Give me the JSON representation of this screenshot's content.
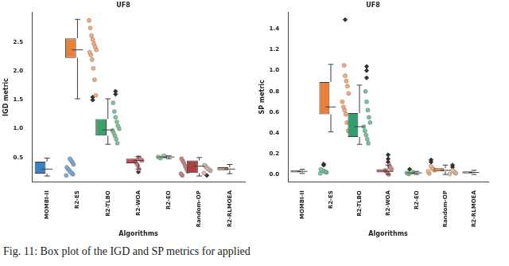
{
  "caption": "Fig. 11: Box plot of the IGD and SP metrics for applied",
  "chart_data": [
    {
      "type": "box",
      "title": "UF8",
      "x_label": "Algorithms",
      "y_label": "IGD metric",
      "categories": [
        "MOMBI-II",
        "R2-ES",
        "R2-TLBO",
        "R2-WOA",
        "R2-EO",
        "Random-OP",
        "R2-RLMOEA"
      ],
      "colors": [
        "#3a7fc1",
        "#e8803a",
        "#3fa06a",
        "#c8474a",
        "#58b06a",
        "#a8423f",
        "#c58f7a"
      ],
      "stats": [
        {
          "whislo": 0.18,
          "q1": 0.22,
          "med": 0.3,
          "q3": 0.43,
          "whishi": 0.49
        },
        {
          "whislo": 1.52,
          "q1": 2.23,
          "med": 2.37,
          "q3": 2.57,
          "whishi": 2.9
        },
        {
          "whislo": 0.73,
          "q1": 0.88,
          "med": 0.98,
          "q3": 1.17,
          "whishi": 1.52
        },
        {
          "whislo": 0.3,
          "q1": 0.4,
          "med": 0.45,
          "q3": 0.48,
          "whishi": 0.52
        },
        {
          "whislo": 0.48,
          "q1": 0.5,
          "med": 0.51,
          "q3": 0.52,
          "whishi": 0.53
        },
        {
          "whislo": 0.18,
          "q1": 0.23,
          "med": 0.35,
          "q3": 0.45,
          "whishi": 0.5
        },
        {
          "whislo": 0.22,
          "q1": 0.28,
          "med": 0.3,
          "q3": 0.33,
          "whishi": 0.38
        }
      ],
      "fliers": [
        [],
        [
          1.5,
          1.55
        ],
        [
          1.6,
          1.65
        ],
        [
          0.25
        ],
        [],
        [],
        [
          0.19
        ]
      ],
      "points": [
        [
          0.19,
          0.21,
          0.23,
          0.25,
          0.28,
          0.3,
          0.33,
          0.38,
          0.42,
          0.45,
          0.48
        ],
        [
          1.58,
          1.85,
          2.05,
          2.2,
          2.28,
          2.33,
          2.37,
          2.42,
          2.48,
          2.55,
          2.62,
          2.75,
          2.88
        ],
        [
          0.75,
          0.82,
          0.88,
          0.93,
          0.97,
          1.0,
          1.05,
          1.12,
          1.2,
          1.3,
          1.45
        ],
        [
          0.3,
          0.36,
          0.4,
          0.43,
          0.45,
          0.46,
          0.48,
          0.5
        ],
        [
          0.49,
          0.5,
          0.51,
          0.52,
          0.53
        ],
        [
          0.19,
          0.22,
          0.26,
          0.3,
          0.35,
          0.4,
          0.44,
          0.48
        ],
        [
          0.23,
          0.27,
          0.29,
          0.3,
          0.32,
          0.35,
          0.37
        ]
      ],
      "ylim": [
        0.08,
        3.02
      ],
      "yticks": [
        0.5,
        {
          "value": 1,
          "label": "1.0"
        },
        1.5,
        {
          "value": 2,
          "label": "2.0"
        },
        2.5
      ],
      "grid": false
    },
    {
      "type": "box",
      "title": "UF8",
      "x_label": "Algorithms",
      "y_label": "SP metric",
      "categories": [
        "MOMBI-II",
        "R2-ES",
        "R2-TLBO",
        "R2-WOA",
        "R2-EO",
        "Random-OP",
        "R2-RLMOEA"
      ],
      "colors": [
        "#3aa870",
        "#e8803a",
        "#2e9f6e",
        "#d04a4a",
        "#4aa564",
        "#e7873b",
        "#d59b7a"
      ],
      "stats": [
        {
          "whislo": 0.01,
          "q1": 0.02,
          "med": 0.03,
          "q3": 0.04,
          "whishi": 0.05
        },
        {
          "whislo": 0.41,
          "q1": 0.58,
          "med": 0.65,
          "q3": 0.89,
          "whishi": 1.06
        },
        {
          "whislo": 0.29,
          "q1": 0.36,
          "med": 0.46,
          "q3": 0.59,
          "whishi": 0.86
        },
        {
          "whislo": 0.0,
          "q1": 0.02,
          "med": 0.03,
          "q3": 0.05,
          "whishi": 0.09
        },
        {
          "whislo": 0.0,
          "q1": 0.01,
          "med": 0.015,
          "q3": 0.02,
          "whishi": 0.03
        },
        {
          "whislo": 0.0,
          "q1": 0.03,
          "med": 0.04,
          "q3": 0.06,
          "whishi": 0.09
        },
        {
          "whislo": 0.0,
          "q1": 0.01,
          "med": 0.02,
          "q3": 0.03,
          "whishi": 0.04
        }
      ],
      "fliers": [
        [
          0.09,
          0.1
        ],
        [
          1.49
        ],
        [
          0.93,
          1.0,
          1.04
        ],
        [
          0.12,
          0.15,
          0.19
        ],
        [
          0.05
        ],
        [
          0.12,
          0.14
        ],
        [
          0.07,
          0.09
        ]
      ],
      "points": [
        [
          0.01,
          0.02,
          0.025,
          0.03,
          0.035,
          0.04,
          0.05
        ],
        [
          0.42,
          0.5,
          0.58,
          0.62,
          0.65,
          0.7,
          0.78,
          0.85,
          0.9,
          0.95,
          1.05
        ],
        [
          0.3,
          0.34,
          0.38,
          0.42,
          0.46,
          0.5,
          0.55,
          0.62,
          0.7,
          0.8
        ],
        [
          0.0,
          0.02,
          0.03,
          0.04,
          0.05,
          0.07,
          0.09
        ],
        [
          0.005,
          0.01,
          0.015,
          0.02,
          0.025
        ],
        [
          0.01,
          0.03,
          0.04,
          0.05,
          0.06,
          0.08
        ],
        [
          0.005,
          0.01,
          0.02,
          0.03,
          0.04
        ]
      ],
      "ylim": [
        -0.07,
        1.56
      ],
      "yticks": [
        {
          "value": 0,
          "label": "0.0"
        },
        0.2,
        0.4,
        0.6,
        0.8,
        {
          "value": 1,
          "label": "1.0"
        },
        1.2,
        1.4
      ],
      "grid": false
    }
  ]
}
